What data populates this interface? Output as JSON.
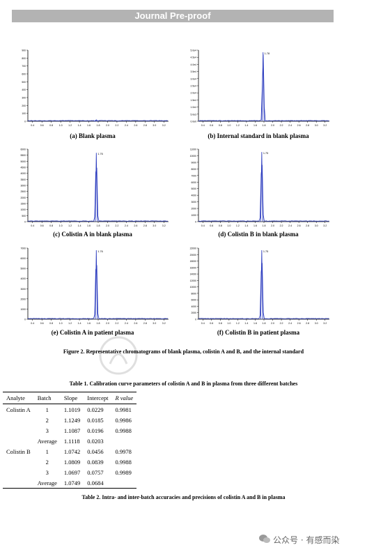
{
  "header": {
    "banner": "Journal Pre-proof"
  },
  "chart_data": [
    {
      "type": "line",
      "panel": "a",
      "caption": "(a) Blank plasma",
      "peak_label": "",
      "ylabels": [
        "900",
        "800",
        "700",
        "600",
        "500",
        "400",
        "300",
        "200",
        "100",
        "0"
      ],
      "xlabels": [
        "0.4",
        "0.6",
        "0.8",
        "1.0",
        "1.2",
        "1.4",
        "1.6",
        "1.8",
        "2.0",
        "2.2",
        "2.4",
        "2.6",
        "2.8",
        "3.0",
        "3.2"
      ],
      "peak_x": 1.76,
      "peak_frac": 0.02
    },
    {
      "type": "line",
      "panel": "b",
      "caption": "(b) Internal standard in blank plasma",
      "peak_label": "1.78",
      "ylabels": [
        "5.0e4",
        "4.5e4",
        "4.0e4",
        "3.5e4",
        "3.0e4",
        "2.5e4",
        "2.0e4",
        "1.5e4",
        "1.0e4",
        "5.0e3",
        "0.0e0"
      ],
      "xlabels": [
        "0.4",
        "0.6",
        "0.8",
        "1.0",
        "1.2",
        "1.4",
        "1.6",
        "1.8",
        "2.0",
        "2.2",
        "2.4",
        "2.6",
        "2.8",
        "3.0",
        "3.2"
      ],
      "peak_x": 1.78,
      "peak_frac": 0.97
    },
    {
      "type": "line",
      "panel": "c",
      "caption": "(c) Colistin A in blank plasma",
      "peak_label": "1.76",
      "ylabels": [
        "6000",
        "5500",
        "5000",
        "4500",
        "4000",
        "3500",
        "3000",
        "2500",
        "2000",
        "1500",
        "1000",
        "500",
        "0"
      ],
      "xlabels": [
        "0.4",
        "0.6",
        "0.8",
        "1.0",
        "1.2",
        "1.4",
        "1.6",
        "1.8",
        "2.0",
        "2.2",
        "2.4",
        "2.6",
        "2.8",
        "3.0",
        "3.2"
      ],
      "peak_x": 1.76,
      "peak_frac": 0.95
    },
    {
      "type": "line",
      "panel": "d",
      "caption": "(d) Colistin B in blank plasma",
      "peak_label": "1.75",
      "ylabels": [
        "11000",
        "10000",
        "9000",
        "8000",
        "7000",
        "6000",
        "5000",
        "4000",
        "3000",
        "2000",
        "1000",
        "0"
      ],
      "xlabels": [
        "0.4",
        "0.6",
        "0.8",
        "1.0",
        "1.2",
        "1.4",
        "1.6",
        "1.8",
        "2.0",
        "2.2",
        "2.4",
        "2.6",
        "2.8",
        "3.0",
        "3.2"
      ],
      "peak_x": 1.75,
      "peak_frac": 0.96
    },
    {
      "type": "line",
      "panel": "e",
      "caption": "(e) Colistin A in patient plasma",
      "peak_label": "1.76",
      "ylabels": [
        "7000",
        "6000",
        "5000",
        "4000",
        "3000",
        "2000",
        "1000",
        "0"
      ],
      "xlabels": [
        "0.4",
        "0.6",
        "0.8",
        "1.0",
        "1.2",
        "1.4",
        "1.6",
        "1.8",
        "2.0",
        "2.2",
        "2.4",
        "2.6",
        "2.8",
        "3.0",
        "3.2"
      ],
      "peak_x": 1.76,
      "peak_frac": 0.97
    },
    {
      "type": "line",
      "panel": "f",
      "caption": "(f) Colistin B in patient plasma",
      "peak_label": "1.75",
      "ylabels": [
        "22000",
        "20000",
        "18000",
        "16000",
        "14000",
        "12000",
        "10000",
        "8000",
        "6000",
        "4000",
        "2000",
        "0"
      ],
      "xlabels": [
        "0.4",
        "0.6",
        "0.8",
        "1.0",
        "1.2",
        "1.4",
        "1.6",
        "1.8",
        "2.0",
        "2.2",
        "2.4",
        "2.6",
        "2.8",
        "3.0",
        "3.2"
      ],
      "peak_x": 1.75,
      "peak_frac": 0.97
    }
  ],
  "figure_caption": "Figure 2. Representative chromatograms of blank plasma, colistin A and B, and the internal standard",
  "table1": {
    "caption": "Table 1. Calibration curve parameters of colistin A and B in plasma from three different batches",
    "headers": [
      "Analyte",
      "Batch",
      "Slope",
      "Intercept",
      "R value"
    ],
    "rows": [
      [
        "Colistin A",
        "1",
        "1.1019",
        "0.0229",
        "0.9981"
      ],
      [
        "",
        "2",
        "1.1249",
        "0.0185",
        "0.9986"
      ],
      [
        "",
        "3",
        "1.1087",
        "0.0196",
        "0.9988"
      ],
      [
        "",
        "Average",
        "1.1118",
        "0.0203",
        ""
      ],
      [
        "Colistin B",
        "1",
        "1.0742",
        "0.0456",
        "0.9978"
      ],
      [
        "",
        "2",
        "1.0809",
        "0.0839",
        "0.9988"
      ],
      [
        "",
        "3",
        "1.0697",
        "0.0757",
        "0.9989"
      ],
      [
        "",
        "Average",
        "1.0749",
        "0.0684",
        ""
      ]
    ]
  },
  "table2": {
    "caption": "Table 2. Intra- and inter-batch accuracies and precisions of colistin A and B in plasma"
  },
  "watermark": {
    "text": "公众号 · 有感而染"
  }
}
